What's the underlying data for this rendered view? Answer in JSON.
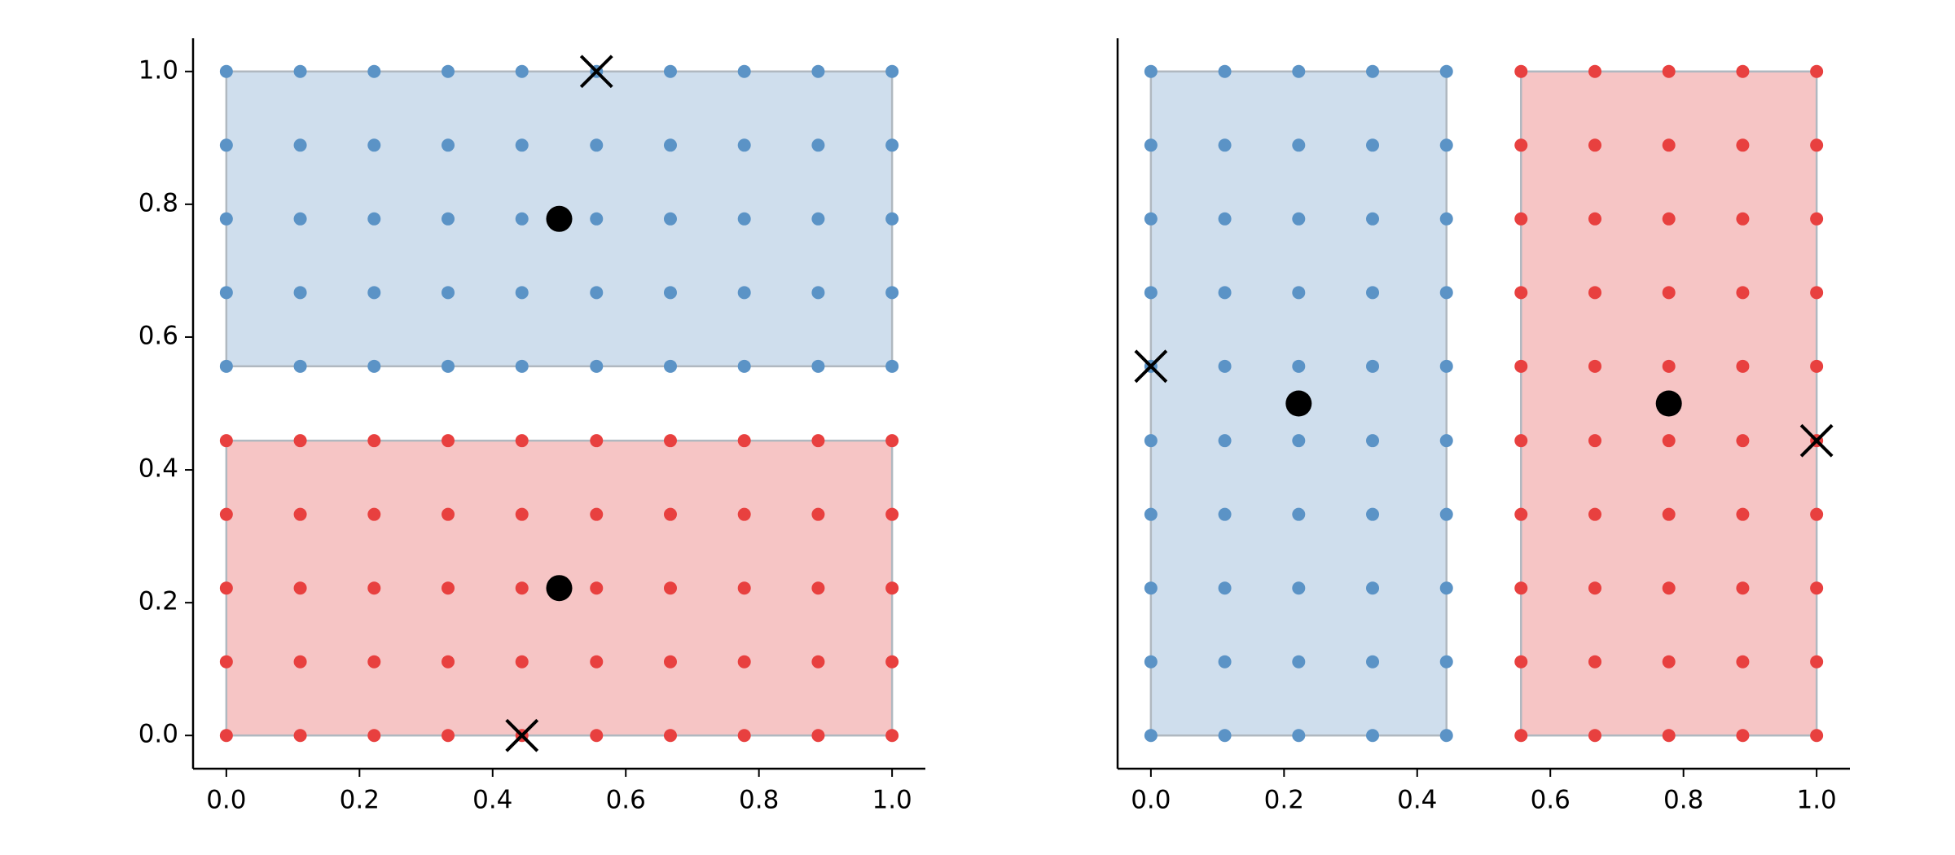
{
  "chart_data": [
    {
      "type": "scatter",
      "xlim": [
        -0.05,
        1.05
      ],
      "ylim": [
        -0.05,
        1.05
      ],
      "xticks": [
        {
          "value": 0,
          "label": "0.0"
        },
        0.2,
        0.4,
        0.6,
        0.8,
        {
          "value": 1,
          "label": "1.0"
        }
      ],
      "yticks": [
        {
          "value": 0,
          "label": "0.0"
        },
        0.2,
        0.4,
        0.6,
        0.8,
        {
          "value": 1,
          "label": "1.0"
        }
      ],
      "series": [
        {
          "color": "#5b93c6",
          "shade": "#cfdeed",
          "marker": "dot",
          "x": [
            0,
            0.111,
            0.222,
            0.333,
            0.444,
            0.556,
            0.667,
            0.778,
            0.889,
            1,
            0,
            0.111,
            0.222,
            0.333,
            0.444,
            0.556,
            0.667,
            0.778,
            0.889,
            1,
            0,
            0.111,
            0.222,
            0.333,
            0.444,
            0.556,
            0.667,
            0.778,
            0.889,
            1,
            0,
            0.111,
            0.222,
            0.333,
            0.444,
            0.556,
            0.667,
            0.778,
            0.889,
            1,
            0,
            0.111,
            0.222,
            0.333,
            0.444,
            0.556,
            0.667,
            0.778,
            0.889,
            1
          ],
          "y": [
            0.556,
            0.556,
            0.556,
            0.556,
            0.556,
            0.556,
            0.556,
            0.556,
            0.556,
            0.556,
            0.667,
            0.667,
            0.667,
            0.667,
            0.667,
            0.667,
            0.667,
            0.667,
            0.667,
            0.667,
            0.778,
            0.778,
            0.778,
            0.778,
            0.778,
            0.778,
            0.778,
            0.778,
            0.778,
            0.778,
            0.889,
            0.889,
            0.889,
            0.889,
            0.889,
            0.889,
            0.889,
            0.889,
            0.889,
            0.889,
            1,
            1,
            1,
            1,
            1,
            1,
            1,
            1,
            1,
            1
          ]
        },
        {
          "color": "#e8403f",
          "shade": "#f6c5c5",
          "marker": "dot",
          "x": [
            0,
            0.111,
            0.222,
            0.333,
            0.444,
            0.556,
            0.667,
            0.778,
            0.889,
            1,
            0,
            0.111,
            0.222,
            0.333,
            0.444,
            0.556,
            0.667,
            0.778,
            0.889,
            1,
            0,
            0.111,
            0.222,
            0.333,
            0.444,
            0.556,
            0.667,
            0.778,
            0.889,
            1,
            0,
            0.111,
            0.222,
            0.333,
            0.444,
            0.556,
            0.667,
            0.778,
            0.889,
            1,
            0,
            0.111,
            0.222,
            0.333,
            0.444,
            0.556,
            0.667,
            0.778,
            0.889,
            1
          ],
          "y": [
            0,
            0,
            0,
            0,
            0,
            0,
            0,
            0,
            0,
            0,
            0.111,
            0.111,
            0.111,
            0.111,
            0.111,
            0.111,
            0.111,
            0.111,
            0.111,
            0.111,
            0.222,
            0.222,
            0.222,
            0.222,
            0.222,
            0.222,
            0.222,
            0.222,
            0.222,
            0.222,
            0.333,
            0.333,
            0.333,
            0.333,
            0.333,
            0.333,
            0.333,
            0.333,
            0.333,
            0.333,
            0.444,
            0.444,
            0.444,
            0.444,
            0.444,
            0.444,
            0.444,
            0.444,
            0.444,
            0.444
          ]
        },
        {
          "color": "#000000",
          "marker": "big-dot",
          "x": [
            0.5,
            0.5
          ],
          "y": [
            0.778,
            0.222
          ]
        },
        {
          "color": "#000000",
          "marker": "cross",
          "x": [
            0.556,
            0.444
          ],
          "y": [
            1,
            0
          ]
        }
      ]
    },
    {
      "type": "scatter",
      "xlim": [
        -0.05,
        1.05
      ],
      "ylim": [
        -0.05,
        1.05
      ],
      "xticks": [
        {
          "value": 0,
          "label": "0.0"
        },
        0.2,
        0.4,
        0.6,
        0.8,
        {
          "value": 1,
          "label": "1.0"
        }
      ],
      "series": [
        {
          "color": "#5b93c6",
          "shade": "#cfdeed",
          "marker": "dot",
          "x": [
            0,
            0.111,
            0.222,
            0.333,
            0.444,
            0,
            0.111,
            0.222,
            0.333,
            0.444,
            0,
            0.111,
            0.222,
            0.333,
            0.444,
            0,
            0.111,
            0.222,
            0.333,
            0.444,
            0,
            0.111,
            0.222,
            0.333,
            0.444,
            0,
            0.111,
            0.222,
            0.333,
            0.444,
            0,
            0.111,
            0.222,
            0.333,
            0.444,
            0,
            0.111,
            0.222,
            0.333,
            0.444,
            0,
            0.111,
            0.222,
            0.333,
            0.444,
            0,
            0.111,
            0.222,
            0.333,
            0.444
          ],
          "y": [
            0,
            0,
            0,
            0,
            0,
            0.111,
            0.111,
            0.111,
            0.111,
            0.111,
            0.222,
            0.222,
            0.222,
            0.222,
            0.222,
            0.333,
            0.333,
            0.333,
            0.333,
            0.333,
            0.444,
            0.444,
            0.444,
            0.444,
            0.444,
            0.556,
            0.556,
            0.556,
            0.556,
            0.556,
            0.667,
            0.667,
            0.667,
            0.667,
            0.667,
            0.778,
            0.778,
            0.778,
            0.778,
            0.778,
            0.889,
            0.889,
            0.889,
            0.889,
            0.889,
            1,
            1,
            1,
            1,
            1
          ]
        },
        {
          "color": "#e8403f",
          "shade": "#f6c5c5",
          "marker": "dot",
          "x": [
            0.556,
            0.667,
            0.778,
            0.889,
            1,
            0.556,
            0.667,
            0.778,
            0.889,
            1,
            0.556,
            0.667,
            0.778,
            0.889,
            1,
            0.556,
            0.667,
            0.778,
            0.889,
            1,
            0.556,
            0.667,
            0.778,
            0.889,
            1,
            0.556,
            0.667,
            0.778,
            0.889,
            1,
            0.556,
            0.667,
            0.778,
            0.889,
            1,
            0.556,
            0.667,
            0.778,
            0.889,
            1,
            0.556,
            0.667,
            0.778,
            0.889,
            1,
            0.556,
            0.667,
            0.778,
            0.889,
            1
          ],
          "y": [
            0,
            0,
            0,
            0,
            0,
            0.111,
            0.111,
            0.111,
            0.111,
            0.111,
            0.222,
            0.222,
            0.222,
            0.222,
            0.222,
            0.333,
            0.333,
            0.333,
            0.333,
            0.333,
            0.444,
            0.444,
            0.444,
            0.444,
            0.444,
            0.556,
            0.556,
            0.556,
            0.556,
            0.556,
            0.667,
            0.667,
            0.667,
            0.667,
            0.667,
            0.778,
            0.778,
            0.778,
            0.778,
            0.778,
            0.889,
            0.889,
            0.889,
            0.889,
            0.889,
            1,
            1,
            1,
            1,
            1
          ]
        },
        {
          "color": "#000000",
          "marker": "big-dot",
          "x": [
            0.222,
            0.778
          ],
          "y": [
            0.5,
            0.5
          ]
        },
        {
          "color": "#000000",
          "marker": "cross",
          "x": [
            0,
            1
          ],
          "y": [
            0.556,
            0.444
          ]
        }
      ]
    }
  ]
}
